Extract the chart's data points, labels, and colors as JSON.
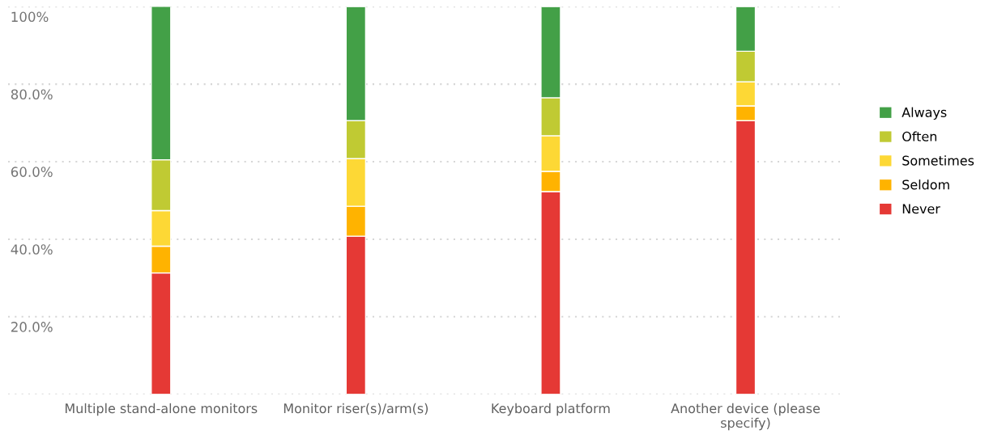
{
  "chart_data": {
    "type": "bar",
    "stacked": true,
    "categories": [
      "Multiple stand-alone monitors",
      "Monitor riser(s)/arm(s)",
      "Keyboard platform",
      "Another device (please specify)"
    ],
    "series": [
      {
        "name": "Never",
        "color": "#e53935",
        "values": [
          31.3,
          40.8,
          52.3,
          70.6
        ]
      },
      {
        "name": "Seldom",
        "color": "#ffb300",
        "values": [
          6.9,
          7.7,
          5.2,
          3.8
        ]
      },
      {
        "name": "Sometimes",
        "color": "#fdd835",
        "values": [
          9.2,
          12.3,
          9.2,
          6.2
        ]
      },
      {
        "name": "Often",
        "color": "#c0ca33",
        "values": [
          13.1,
          9.8,
          9.8,
          7.9
        ]
      },
      {
        "name": "Always",
        "color": "#43a047",
        "values": [
          39.6,
          29.4,
          23.5,
          11.5
        ]
      }
    ],
    "ylim": [
      0,
      100
    ],
    "yticks": [
      {
        "value": 0,
        "label": null
      },
      {
        "value": 20,
        "label": "20.0%"
      },
      {
        "value": 40,
        "label": "40.0%"
      },
      {
        "value": 60,
        "label": "60.0%"
      },
      {
        "value": 80,
        "label": "80.0%"
      },
      {
        "value": 100,
        "label": "100%"
      }
    ],
    "grid": "y",
    "legend": "right"
  }
}
